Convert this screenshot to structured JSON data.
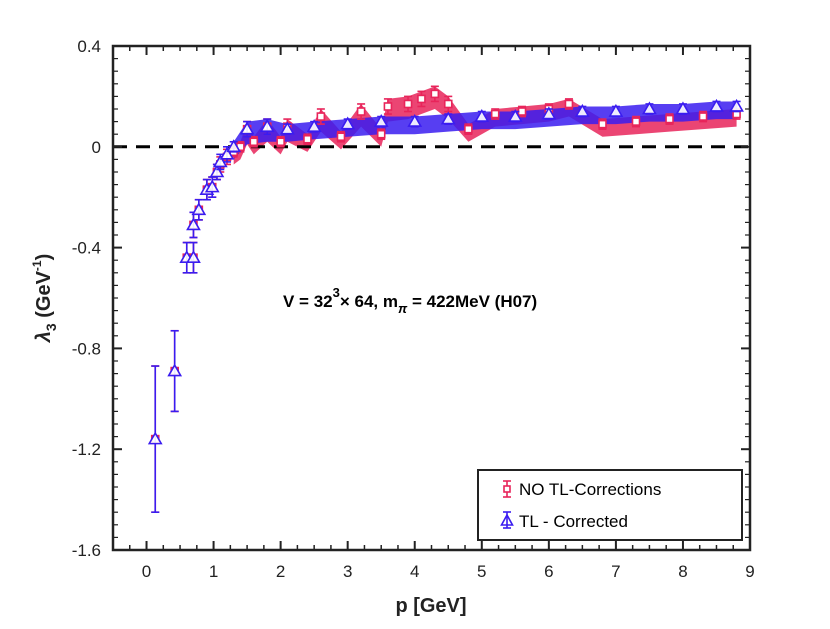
{
  "chart_data": {
    "type": "scatter",
    "title": "",
    "xlabel": "p [GeV]",
    "ylabel_main": "λ",
    "ylabel_sub": "3",
    "ylabel_unit_open": " (GeV",
    "ylabel_unit_sup": "-1",
    "ylabel_unit_close": ")",
    "xlim": [
      -0.5,
      9
    ],
    "ylim": [
      -1.6,
      0.4
    ],
    "xticks": [
      0,
      1,
      2,
      3,
      4,
      5,
      6,
      7,
      8,
      9
    ],
    "xtick_labels": [
      "0",
      "1",
      "2",
      "3",
      "4",
      "5",
      "6",
      "7",
      "8",
      "9"
    ],
    "yticks": [
      0.4,
      0,
      -0.4,
      -0.8,
      -1.2,
      -1.6
    ],
    "ytick_labels": [
      "0.4",
      "0",
      "-0.4",
      "-0.8",
      "-1.2",
      "-1.6"
    ],
    "reference_line": {
      "y": 0,
      "style": "dashed"
    },
    "annotation": {
      "prefix": "V = 32",
      "sup1": "3",
      "middle": "× 64, m",
      "sub": "π",
      "suffix": " = 422MeV (H07)"
    },
    "legend": {
      "position": "bottom-right",
      "entries": [
        "NO TL-Corrections",
        "TL - Corrected"
      ]
    },
    "series": [
      {
        "name": "NO TL-Corrections",
        "marker": "square",
        "color": "#e8245a",
        "points": [
          {
            "x": 0.13,
            "y": -1.16,
            "err": 0.29
          },
          {
            "x": 0.42,
            "y": -0.89,
            "err": 0.16
          },
          {
            "x": 0.6,
            "y": -0.44,
            "err": 0.06
          },
          {
            "x": 0.7,
            "y": -0.44,
            "err": 0.06
          },
          {
            "x": 0.7,
            "y": -0.31,
            "err": 0.05
          },
          {
            "x": 0.78,
            "y": -0.25,
            "err": 0.04
          },
          {
            "x": 0.9,
            "y": -0.17,
            "err": 0.04
          },
          {
            "x": 0.98,
            "y": -0.16,
            "err": 0.04
          },
          {
            "x": 1.05,
            "y": -0.1,
            "err": 0.03
          },
          {
            "x": 1.1,
            "y": -0.07,
            "err": 0.03
          },
          {
            "x": 1.2,
            "y": -0.04,
            "err": 0.03
          },
          {
            "x": 1.3,
            "y": -0.02,
            "err": 0.02
          },
          {
            "x": 1.4,
            "y": 0.0,
            "err": 0.02
          },
          {
            "x": 1.5,
            "y": 0.07,
            "err": 0.03
          },
          {
            "x": 1.6,
            "y": 0.02,
            "err": 0.02
          },
          {
            "x": 1.8,
            "y": 0.08,
            "err": 0.03
          },
          {
            "x": 2.0,
            "y": 0.02,
            "err": 0.02
          },
          {
            "x": 2.1,
            "y": 0.08,
            "err": 0.03
          },
          {
            "x": 2.4,
            "y": 0.03,
            "err": 0.02
          },
          {
            "x": 2.6,
            "y": 0.12,
            "err": 0.03
          },
          {
            "x": 2.9,
            "y": 0.04,
            "err": 0.02
          },
          {
            "x": 3.2,
            "y": 0.14,
            "err": 0.03
          },
          {
            "x": 3.5,
            "y": 0.05,
            "err": 0.02
          },
          {
            "x": 3.6,
            "y": 0.16,
            "err": 0.03
          },
          {
            "x": 3.9,
            "y": 0.17,
            "err": 0.03
          },
          {
            "x": 4.1,
            "y": 0.19,
            "err": 0.03
          },
          {
            "x": 4.3,
            "y": 0.21,
            "err": 0.03
          },
          {
            "x": 4.5,
            "y": 0.17,
            "err": 0.03
          },
          {
            "x": 4.8,
            "y": 0.07,
            "err": 0.02
          },
          {
            "x": 5.2,
            "y": 0.13,
            "err": 0.02
          },
          {
            "x": 5.6,
            "y": 0.14,
            "err": 0.02
          },
          {
            "x": 6.0,
            "y": 0.15,
            "err": 0.02
          },
          {
            "x": 6.3,
            "y": 0.17,
            "err": 0.02
          },
          {
            "x": 6.8,
            "y": 0.09,
            "err": 0.02
          },
          {
            "x": 7.3,
            "y": 0.1,
            "err": 0.02
          },
          {
            "x": 7.8,
            "y": 0.11,
            "err": 0.02
          },
          {
            "x": 8.3,
            "y": 0.12,
            "err": 0.02
          },
          {
            "x": 8.8,
            "y": 0.13,
            "err": 0.02
          }
        ]
      },
      {
        "name": "TL - Corrected",
        "marker": "triangle",
        "color": "#3a1cf0",
        "points": [
          {
            "x": 0.13,
            "y": -1.16,
            "err": 0.29
          },
          {
            "x": 0.42,
            "y": -0.89,
            "err": 0.16
          },
          {
            "x": 0.6,
            "y": -0.44,
            "err": 0.06
          },
          {
            "x": 0.7,
            "y": -0.44,
            "err": 0.06
          },
          {
            "x": 0.7,
            "y": -0.31,
            "err": 0.05
          },
          {
            "x": 0.78,
            "y": -0.25,
            "err": 0.04
          },
          {
            "x": 0.9,
            "y": -0.17,
            "err": 0.04
          },
          {
            "x": 0.98,
            "y": -0.16,
            "err": 0.04
          },
          {
            "x": 1.05,
            "y": -0.1,
            "err": 0.03
          },
          {
            "x": 1.1,
            "y": -0.06,
            "err": 0.03
          },
          {
            "x": 1.2,
            "y": -0.03,
            "err": 0.03
          },
          {
            "x": 1.3,
            "y": 0.0,
            "err": 0.02
          },
          {
            "x": 1.5,
            "y": 0.07,
            "err": 0.03
          },
          {
            "x": 1.8,
            "y": 0.08,
            "err": 0.03
          },
          {
            "x": 2.1,
            "y": 0.07,
            "err": 0.02
          },
          {
            "x": 2.5,
            "y": 0.08,
            "err": 0.02
          },
          {
            "x": 3.0,
            "y": 0.09,
            "err": 0.02
          },
          {
            "x": 3.5,
            "y": 0.1,
            "err": 0.02
          },
          {
            "x": 4.0,
            "y": 0.1,
            "err": 0.02
          },
          {
            "x": 4.5,
            "y": 0.11,
            "err": 0.02
          },
          {
            "x": 5.0,
            "y": 0.12,
            "err": 0.02
          },
          {
            "x": 5.5,
            "y": 0.12,
            "err": 0.02
          },
          {
            "x": 6.0,
            "y": 0.13,
            "err": 0.02
          },
          {
            "x": 6.5,
            "y": 0.14,
            "err": 0.02
          },
          {
            "x": 7.0,
            "y": 0.14,
            "err": 0.02
          },
          {
            "x": 7.5,
            "y": 0.15,
            "err": 0.02
          },
          {
            "x": 8.0,
            "y": 0.15,
            "err": 0.02
          },
          {
            "x": 8.5,
            "y": 0.16,
            "err": 0.02
          },
          {
            "x": 8.8,
            "y": 0.16,
            "err": 0.02
          }
        ]
      }
    ]
  }
}
